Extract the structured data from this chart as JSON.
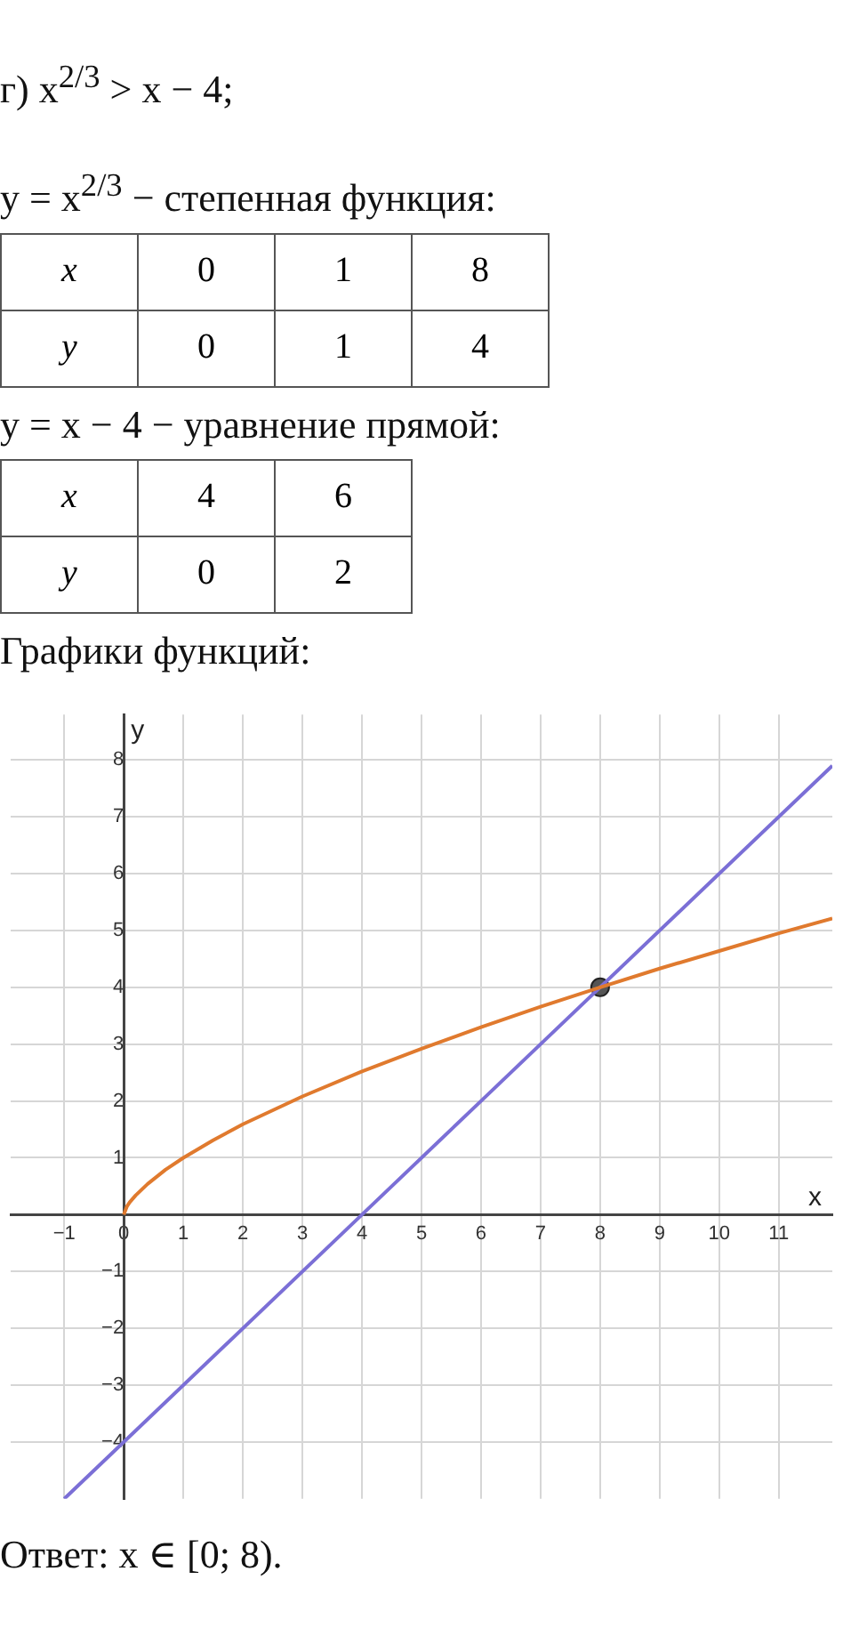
{
  "chart_data": {
    "type": "line",
    "title": "г) x$^{2/3}$ > x − 4;",
    "annotations": [
      "y = x$^{2/3}$ − степенная функция:",
      "x",
      "0",
      "1",
      "8",
      "y",
      "0",
      "1",
      "4",
      "y = x − 4 − уравнение прямой:",
      "x",
      "4",
      "6",
      "y",
      "0",
      "2",
      "Графики функций:",
      "Ответ:  x ∈ [0; 8)."
    ],
    "xlabel": "x",
    "ylabel": "y",
    "xlim": [
      -1.9,
      11.9
    ],
    "ylim": [
      -5,
      8.8
    ],
    "xticks": [
      {
        "value": -1,
        "label": "−1"
      },
      0,
      1,
      2,
      3,
      4,
      5,
      6,
      7,
      8,
      9,
      10,
      11
    ],
    "yticks": [
      {
        "value": -4,
        "label": "−4"
      },
      {
        "value": -3,
        "label": "−3"
      },
      {
        "value": -2,
        "label": "−2"
      },
      {
        "value": -1,
        "label": "−1"
      },
      {
        "value": 0,
        "label": null
      },
      1,
      2,
      3,
      4,
      5,
      6,
      7,
      8
    ],
    "grid": true,
    "legend": false,
    "series": [
      {
        "type": "line",
        "color": "#e07a2e",
        "marker": "none",
        "x": [
          0,
          0.05,
          0.1,
          0.2,
          0.4,
          0.7,
          1,
          1.5,
          2,
          3,
          4,
          5,
          6,
          7,
          8,
          9,
          10,
          11,
          11.9
        ],
        "values": [
          0,
          0.14,
          0.22,
          0.34,
          0.54,
          0.79,
          1,
          1.31,
          1.59,
          2.08,
          2.52,
          2.92,
          3.3,
          3.66,
          4,
          4.33,
          4.64,
          4.95,
          5.21
        ]
      },
      {
        "type": "line",
        "color": "#7b6fd6",
        "marker": "none",
        "x": [
          -1,
          4,
          6,
          11.9
        ],
        "values": [
          -5,
          0,
          2,
          7.9
        ]
      },
      {
        "type": "scatter",
        "color": "#555555",
        "marker": "circle",
        "x": [
          8
        ],
        "values": [
          4
        ]
      }
    ]
  }
}
